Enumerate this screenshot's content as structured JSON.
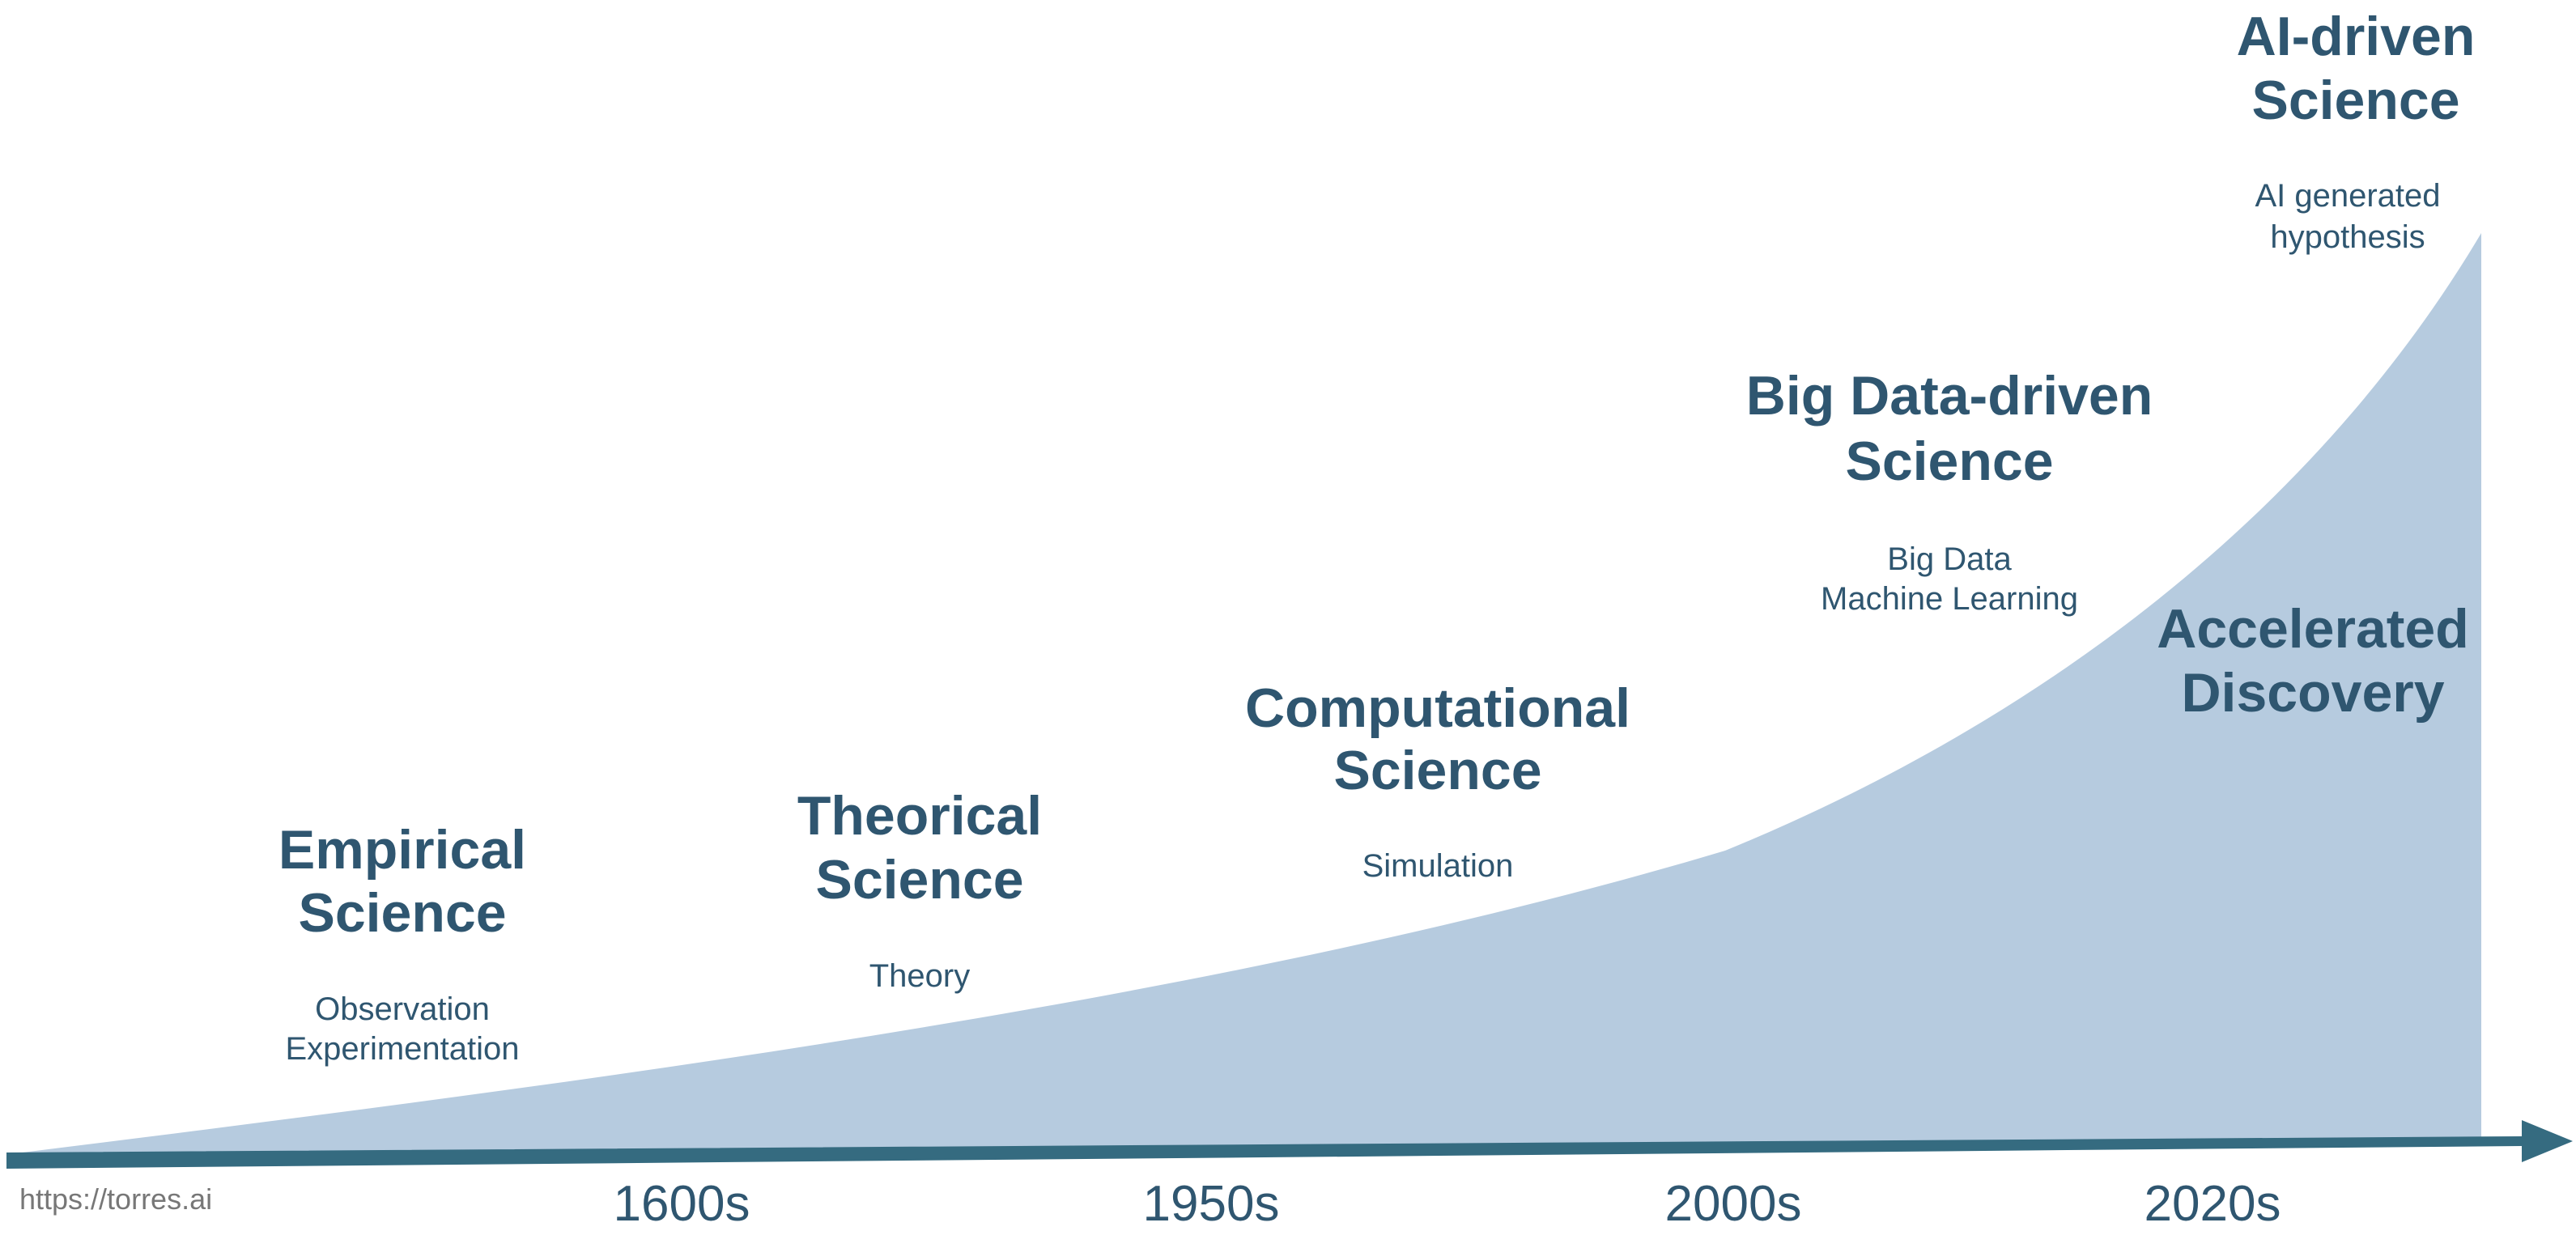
{
  "colors": {
    "area_fill": "#b6cbdf",
    "text": "#2f5670",
    "axis": "#356b80",
    "watermark": "#777777"
  },
  "eras": [
    {
      "title_line1": "Empirical",
      "title_line2": "Science",
      "sub_line1": "Observation",
      "sub_line2": "Experimentation"
    },
    {
      "title_line1": "Theorical",
      "title_line2": "Science",
      "sub_line1": "Theory"
    },
    {
      "title_line1": "Computational",
      "title_line2": "Science",
      "sub_line1": "Simulation"
    },
    {
      "title_line1": "Big Data-driven",
      "title_line2": "Science",
      "sub_line1": "Big Data",
      "sub_line2": "Machine Learning"
    },
    {
      "title_line1": "AI-driven",
      "title_line2": "Science",
      "sub_line1": "AI generated",
      "sub_line2": "hypothesis"
    }
  ],
  "area_label": {
    "line1": "Accelerated",
    "line2": "Discovery"
  },
  "timeline_ticks": [
    "1600s",
    "1950s",
    "2000s",
    "2020s"
  ],
  "watermark": "https://torres.ai"
}
